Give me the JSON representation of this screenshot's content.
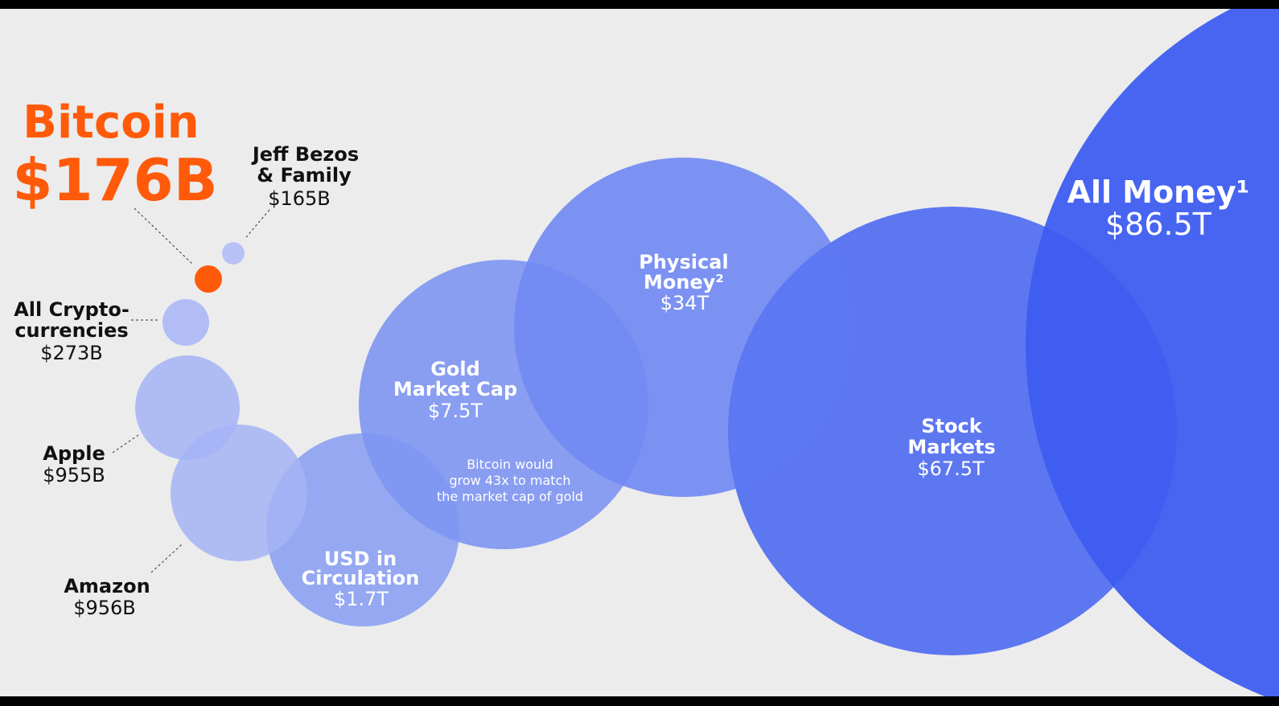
{
  "chart_data": {
    "type": "bubble",
    "bubbles": [
      {
        "name": "Bitcoin",
        "value_text": "$176B",
        "value_billions": 176,
        "color": "#ff5a0a"
      },
      {
        "name": "Jeff Bezos & Family",
        "name_lines": [
          "Jeff Bezos",
          "& Family"
        ],
        "value_text": "$165B",
        "value_billions": 165,
        "color": "#b8c2f7"
      },
      {
        "name": "All Crypto-currencies",
        "name_lines": [
          "All Crypto-",
          "currencies"
        ],
        "value_text": "$273B",
        "value_billions": 273,
        "color": "#b2bdf6"
      },
      {
        "name": "Apple",
        "value_text": "$955B",
        "value_billions": 955,
        "color": "#a4b4f6"
      },
      {
        "name": "Amazon",
        "value_text": "$956B",
        "value_billions": 956,
        "color": "#a4b4f6"
      },
      {
        "name": "USD in Circulation",
        "name_lines": [
          "USD in",
          "Circulation"
        ],
        "value_text": "$1.7T",
        "value_billions": 1700,
        "color": "#8097f3"
      },
      {
        "name": "Gold Market Cap",
        "name_lines": [
          "Gold",
          "Market Cap"
        ],
        "value_text": "$7.5T",
        "value_billions": 7500,
        "color": "#7089f3"
      },
      {
        "name": "Physical Money",
        "name_lines": [
          "Physical",
          "Money²"
        ],
        "value_text": "$34T",
        "value_billions": 34000,
        "color": "#5c78f3"
      },
      {
        "name": "Stock Markets",
        "name_lines": [
          "Stock",
          "Markets"
        ],
        "value_text": "$67.5T",
        "value_billions": 67500,
        "color": "#3d5df0"
      },
      {
        "name": "All Money",
        "name_lines": [
          "All Money¹"
        ],
        "value_text": "$86.5T",
        "value_billions": 86500,
        "color": "#2a4df2"
      }
    ],
    "annotation": [
      "Bitcoin would",
      "grow 43x to match",
      "the market cap of gold"
    ],
    "colors": {
      "accent": "#ff5a0a",
      "label_dark": "#111111",
      "label_light": "#ffffff"
    }
  }
}
